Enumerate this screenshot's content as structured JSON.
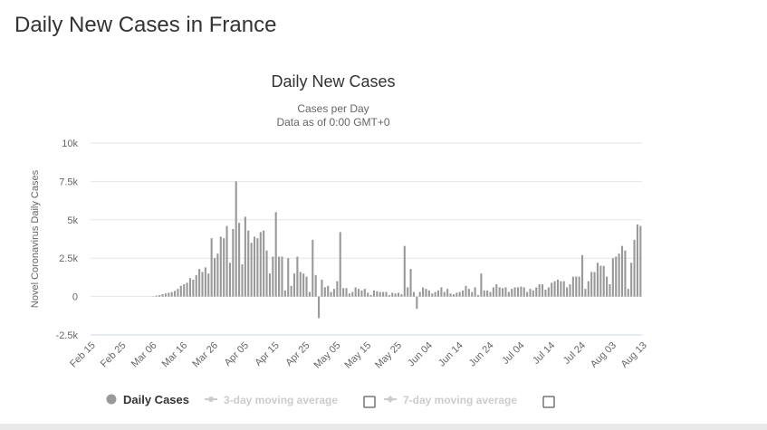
{
  "page": {
    "title": "Daily New Cases in France"
  },
  "chart_data": {
    "type": "bar",
    "title": "Daily New Cases",
    "subtitle_line1": "Cases per Day",
    "subtitle_line2": "Data as of 0:00 GMT+0",
    "ylabel": "Novel Coronavirus Daily Cases",
    "xlabel": "",
    "ylim": [
      -2500,
      10000
    ],
    "y_ticks": [
      "10k",
      "7.5k",
      "5k",
      "2.5k",
      "0",
      "-2.5k"
    ],
    "y_tick_values": [
      10000,
      7500,
      5000,
      2500,
      0,
      -2500
    ],
    "x_tick_labels": [
      "Feb 15",
      "Feb 25",
      "Mar 06",
      "Mar 16",
      "Mar 26",
      "Apr 05",
      "Apr 15",
      "Apr 25",
      "May 05",
      "May 15",
      "May 25",
      "Jun 04",
      "Jun 14",
      "Jun 24",
      "Jul 04",
      "Jul 14",
      "Jul 24",
      "Aug 03",
      "Aug 13"
    ],
    "x_tick_day_index": [
      0,
      10,
      20,
      30,
      40,
      50,
      60,
      70,
      80,
      90,
      100,
      110,
      120,
      130,
      140,
      150,
      160,
      170,
      180
    ],
    "start_date": "Feb 15",
    "values": [
      0,
      0,
      0,
      0,
      0,
      0,
      0,
      0,
      0,
      0,
      0,
      0,
      0,
      0,
      0,
      0,
      0,
      0,
      0,
      0,
      20,
      60,
      100,
      150,
      200,
      250,
      290,
      370,
      500,
      700,
      800,
      900,
      1200,
      1100,
      1400,
      1800,
      1600,
      1900,
      1500,
      3800,
      2500,
      2800,
      3900,
      3800,
      4600,
      2200,
      4400,
      7500,
      4800,
      2100,
      5200,
      4300,
      3500,
      3900,
      3800,
      4200,
      4300,
      3000,
      1500,
      2600,
      5500,
      2600,
      2600,
      400,
      2500,
      700,
      1500,
      2600,
      1600,
      1500,
      1300,
      300,
      3700,
      1400,
      -1400,
      1100,
      600,
      700,
      300,
      500,
      1000,
      4200,
      550,
      550,
      200,
      300,
      600,
      500,
      400,
      500,
      250,
      100,
      400,
      350,
      300,
      300,
      300,
      100,
      250,
      200,
      250,
      150,
      3300,
      600,
      1800,
      300,
      -800,
      300,
      600,
      500,
      400,
      200,
      300,
      400,
      600,
      300,
      500,
      200,
      150,
      250,
      300,
      400,
      700,
      500,
      300,
      600,
      100,
      1500,
      400,
      400,
      300,
      600,
      800,
      600,
      550,
      600,
      300,
      500,
      600,
      600,
      650,
      600,
      300,
      500,
      400,
      600,
      800,
      800,
      450,
      600,
      900,
      1000,
      1100,
      1000,
      1000,
      600,
      800,
      1300,
      1300,
      1300,
      2700,
      500,
      1000,
      1600,
      1600,
      2200,
      2000,
      2000,
      1300,
      800,
      2500,
      2600,
      2800,
      3300,
      3000,
      500,
      2200,
      3700,
      4700,
      4600
    ],
    "legend": {
      "series1": "Daily Cases",
      "series2": "3-day moving average",
      "series3": "7-day moving average"
    },
    "colors": {
      "bar": "#999999",
      "grid": "#e6e6e6",
      "axis": "#ccd6eb",
      "legend_off": "#cccccc"
    }
  }
}
